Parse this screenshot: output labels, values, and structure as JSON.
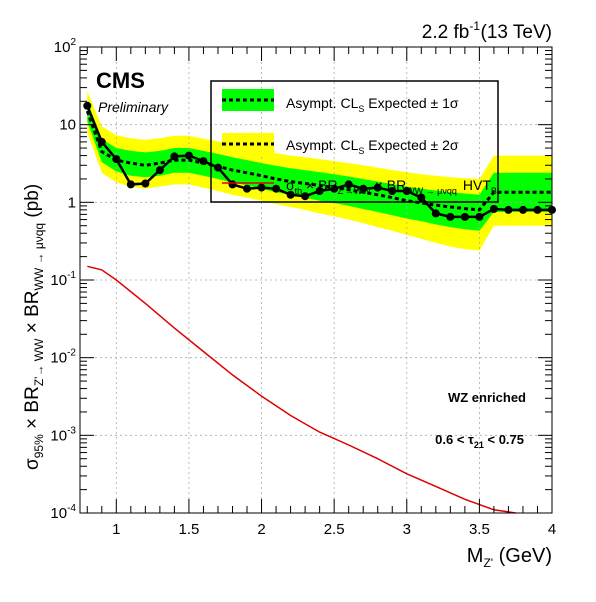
{
  "header": {
    "lumi_label": "2.2 fb",
    "lumi_sup": "-1",
    "energy_label": "(13 TeV)",
    "experiment_label": "CMS",
    "status_label": "Preliminary"
  },
  "annotations": {
    "region_label": "WZ enriched",
    "cut_prefix": "0.6 <  τ",
    "cut_sub": "21",
    "cut_suffix": " < 0.75"
  },
  "axes": {
    "x_title_main": "M",
    "x_title_sub": "Z'",
    "x_title_unit": " (GeV)",
    "y_title_parts": [
      {
        "t": "σ",
        "sub": false
      },
      {
        "t": "95%",
        "sub": true
      },
      {
        "t": " × BR",
        "sub": false
      },
      {
        "t": "Z'→ WW",
        "sub": true
      },
      {
        "t": " × BR",
        "sub": false
      },
      {
        "t": "WW → μνqq",
        "sub": true
      },
      {
        "t": "  (pb)",
        "sub": false
      }
    ]
  },
  "legend": {
    "band1_label": "Asympt. CL",
    "band1_sub": "S",
    "band1_suffix": "  Expected ± 1σ",
    "band2_label": "Asympt. CL",
    "band2_sub": "S",
    "band2_suffix": "  Expected ± 2σ",
    "observed_label": "σ",
    "observed_label_sub": "th",
    "observed_label_rest": " × BR",
    "observed_label_sub2": "Z'→WW",
    "observed_label_rest2": " × BR",
    "observed_label_sub3": "WW → μνqq",
    "theory_label": "HVT",
    "theory_sub": "B"
  },
  "colors": {
    "band2": "#ffff00",
    "band1": "#00ff00",
    "expected": "#000000",
    "observed": "#000000",
    "theory": "#dd0000",
    "frame": "#000000",
    "grid": "#aaaaaa"
  },
  "chart_data": {
    "type": "line",
    "title": "",
    "xlabel": "M_Z' (GeV)",
    "ylabel": "σ95% × BR_Z'→WW × BR_WW→μνqq (pb)",
    "xlim": [
      0.75,
      4.0
    ],
    "ylim": [
      0.0001,
      100
    ],
    "yscale": "log",
    "grid": true,
    "legend_position": "top-right",
    "x_ticks": [
      1,
      1.5,
      2,
      2.5,
      3,
      3.5,
      4
    ],
    "x_tick_labels": [
      "1",
      "1.5",
      "2",
      "2.5",
      "3",
      "3.5",
      "4"
    ],
    "y_ticks": [
      0.0001,
      0.001,
      0.01,
      0.1,
      1,
      10,
      100
    ],
    "y_tick_labels": [
      {
        "base": "10",
        "exp": "-4"
      },
      {
        "base": "10",
        "exp": "-3"
      },
      {
        "base": "10",
        "exp": "-2"
      },
      {
        "base": "10",
        "exp": "-1"
      },
      {
        "base": "1",
        "exp": ""
      },
      {
        "base": "10",
        "exp": ""
      },
      {
        "base": "10",
        "exp": "2"
      }
    ],
    "x": [
      0.8,
      0.9,
      1.0,
      1.1,
      1.2,
      1.3,
      1.4,
      1.5,
      1.6,
      1.7,
      1.8,
      1.9,
      2.0,
      2.1,
      2.2,
      2.3,
      2.4,
      2.5,
      2.6,
      2.7,
      2.8,
      2.9,
      3.0,
      3.1,
      3.2,
      3.3,
      3.4,
      3.5,
      3.6,
      3.7,
      3.8,
      3.9,
      4.0
    ],
    "series": [
      {
        "name": "Observed",
        "values": [
          17.5,
          6.0,
          3.6,
          1.7,
          1.75,
          2.6,
          3.9,
          4.0,
          3.4,
          2.8,
          1.7,
          1.5,
          1.55,
          1.5,
          1.25,
          1.2,
          1.4,
          1.5,
          1.7,
          1.5,
          1.55,
          1.4,
          1.4,
          1.15,
          0.72,
          0.65,
          0.65,
          0.65,
          0.82,
          0.8,
          0.8,
          0.8,
          0.8
        ]
      },
      {
        "name": "Expected",
        "values": [
          15.0,
          4.5,
          3.5,
          3.2,
          3.0,
          3.2,
          3.5,
          3.5,
          3.2,
          2.9,
          2.6,
          2.4,
          2.2,
          2.0,
          1.85,
          1.75,
          1.65,
          1.55,
          1.45,
          1.35,
          1.25,
          1.15,
          1.05,
          0.98,
          0.92,
          0.87,
          0.83,
          0.8,
          1.35,
          1.35,
          1.35,
          1.35,
          1.35
        ]
      },
      {
        "name": "Expected ±1σ low",
        "values": [
          11.0,
          3.3,
          2.5,
          2.2,
          2.1,
          2.2,
          2.4,
          2.4,
          2.2,
          2.0,
          1.8,
          1.65,
          1.5,
          1.35,
          1.25,
          1.15,
          1.05,
          0.98,
          0.9,
          0.82,
          0.75,
          0.68,
          0.62,
          0.57,
          0.52,
          0.48,
          0.45,
          0.43,
          0.75,
          0.75,
          0.75,
          0.75,
          0.75
        ]
      },
      {
        "name": "Expected ±1σ high",
        "values": [
          20.0,
          6.5,
          5.0,
          4.6,
          4.4,
          4.6,
          5.0,
          5.0,
          4.6,
          4.2,
          3.8,
          3.5,
          3.2,
          2.95,
          2.75,
          2.6,
          2.45,
          2.3,
          2.15,
          2.0,
          1.85,
          1.72,
          1.6,
          1.5,
          1.42,
          1.35,
          1.3,
          1.25,
          2.4,
          2.4,
          2.4,
          2.4,
          2.4
        ]
      },
      {
        "name": "Expected ±2σ low",
        "values": [
          8.0,
          2.4,
          1.8,
          1.6,
          1.5,
          1.6,
          1.7,
          1.7,
          1.55,
          1.4,
          1.25,
          1.15,
          1.05,
          0.95,
          0.87,
          0.8,
          0.72,
          0.66,
          0.6,
          0.54,
          0.48,
          0.43,
          0.38,
          0.34,
          0.3,
          0.27,
          0.25,
          0.24,
          0.5,
          0.5,
          0.5,
          0.5,
          0.5
        ]
      },
      {
        "name": "Expected ±2σ high",
        "values": [
          27.0,
          9.5,
          7.3,
          6.7,
          6.4,
          6.7,
          7.2,
          7.2,
          6.6,
          6.1,
          5.5,
          5.1,
          4.7,
          4.3,
          4.0,
          3.8,
          3.6,
          3.4,
          3.2,
          3.0,
          2.8,
          2.6,
          2.45,
          2.3,
          2.2,
          2.1,
          2.05,
          2.0,
          4.0,
          4.0,
          4.0,
          4.0,
          4.0
        ]
      },
      {
        "name": "HVT_B",
        "x": [
          0.8,
          0.9,
          1.0,
          1.2,
          1.4,
          1.6,
          1.8,
          2.0,
          2.2,
          2.4,
          2.6,
          2.8,
          3.0,
          3.2,
          3.4,
          3.6,
          3.75
        ],
        "values": [
          0.15,
          0.135,
          0.1,
          0.05,
          0.024,
          0.012,
          0.006,
          0.0032,
          0.0018,
          0.0011,
          0.00075,
          0.0005,
          0.00032,
          0.00022,
          0.00015,
          0.00011,
          0.0001
        ]
      }
    ]
  }
}
